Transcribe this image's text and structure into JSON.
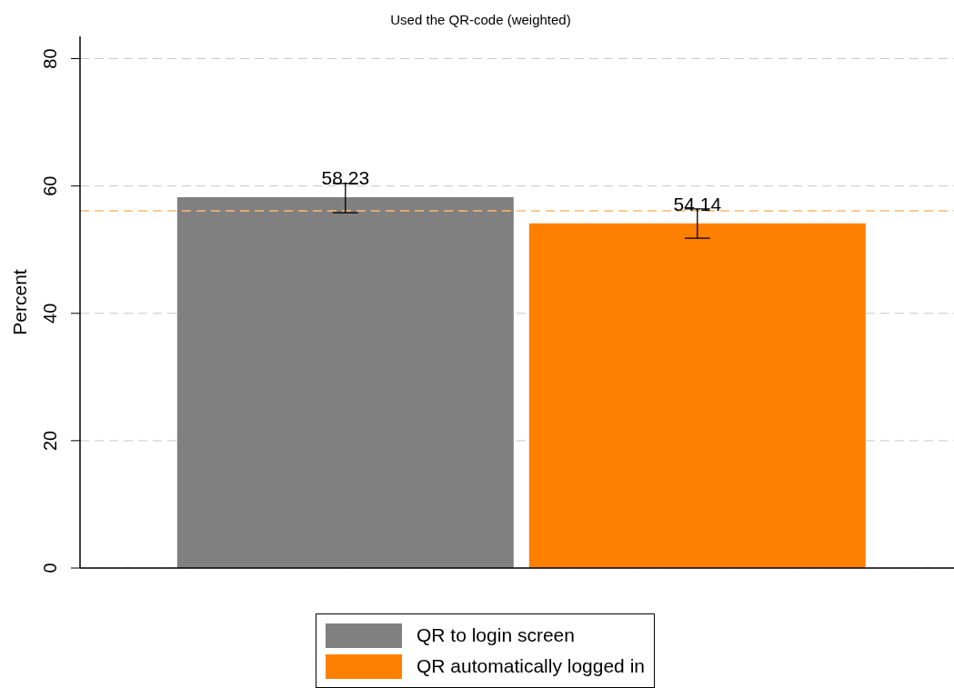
{
  "chart_data": {
    "type": "bar",
    "title": "Used the QR-code (weighted)",
    "ylabel": "Percent",
    "categories": [
      null
    ],
    "series": [
      {
        "name": "QR to login screen",
        "color": "#808080",
        "values": [
          58.23
        ],
        "errors": [
          [
            55.8,
            60.4
          ]
        ]
      },
      {
        "name": "QR automatically logged in",
        "color": "#ff7f00",
        "values": [
          54.14
        ],
        "errors": [
          [
            51.8,
            56.4
          ]
        ]
      }
    ],
    "ylim": [
      0,
      83.5
    ],
    "yticks": [
      0,
      20,
      40,
      60,
      80
    ],
    "grid": "y",
    "data_labels": true,
    "legend": "bottom",
    "ref_lines": [
      {
        "axis": "y",
        "value": 56.1,
        "color": "#ffb870",
        "line_style": "dashed"
      }
    ]
  }
}
